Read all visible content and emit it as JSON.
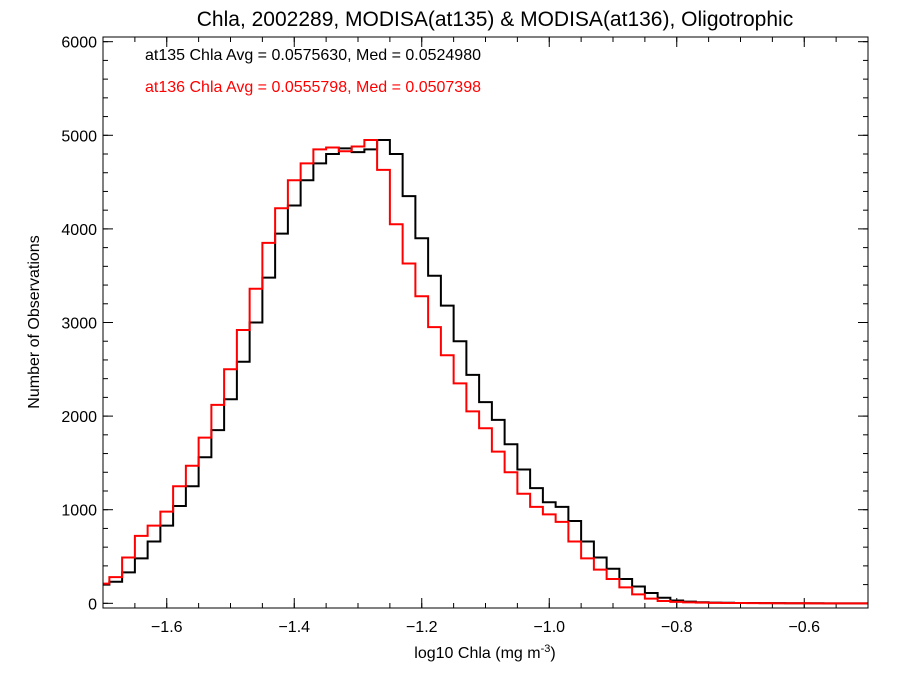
{
  "chart_data": {
    "type": "line",
    "title": "Chla, 2002289, MODISA(at135) & MODISA(at136), Oligotrophic",
    "xlabel": "log10 Chla (mg m",
    "xlabel_sup": "-3",
    "xlabel_end": ")",
    "ylabel": "Number of Observations",
    "xlim": [
      -1.7,
      -0.5
    ],
    "ylim": [
      -50,
      6050
    ],
    "xticks": [
      -1.6,
      -1.4,
      -1.2,
      -1.0,
      -0.8,
      -0.6
    ],
    "xtick_labels": [
      "−1.6",
      "−1.4",
      "−1.2",
      "−1.0",
      "−0.8",
      "−0.6"
    ],
    "yticks": [
      0,
      1000,
      2000,
      3000,
      4000,
      5000,
      6000
    ],
    "ytick_labels": [
      "0",
      "1000",
      "2000",
      "3000",
      "4000",
      "5000",
      "6000"
    ],
    "grid": false,
    "annotations": [
      {
        "text": "at135 Chla Avg = 0.0575630, Med = 0.0524980",
        "color": "#000000"
      },
      {
        "text": "at136 Chla Avg = 0.0555798, Med = 0.0507398",
        "color": "#ff0000"
      }
    ],
    "series": [
      {
        "color": "#000000",
        "x": [
          -1.7,
          -1.68,
          -1.66,
          -1.64,
          -1.62,
          -1.6,
          -1.58,
          -1.56,
          -1.54,
          -1.52,
          -1.5,
          -1.48,
          -1.46,
          -1.44,
          -1.42,
          -1.4,
          -1.38,
          -1.36,
          -1.34,
          -1.32,
          -1.3,
          -1.28,
          -1.26,
          -1.24,
          -1.22,
          -1.2,
          -1.18,
          -1.16,
          -1.14,
          -1.12,
          -1.1,
          -1.08,
          -1.06,
          -1.04,
          -1.02,
          -1.0,
          -0.98,
          -0.96,
          -0.94,
          -0.92,
          -0.9,
          -0.88,
          -0.86,
          -0.84,
          -0.82,
          -0.8,
          -0.78,
          -0.76,
          -0.74,
          -0.72,
          -0.7,
          -0.68,
          -0.66,
          -0.64,
          -0.62,
          -0.6,
          -0.58,
          -0.56,
          -0.54,
          -0.52,
          -0.5
        ],
        "values": [
          200,
          230,
          330,
          480,
          660,
          830,
          1040,
          1250,
          1560,
          1850,
          2180,
          2580,
          3000,
          3480,
          3950,
          4250,
          4520,
          4700,
          4800,
          4860,
          4820,
          4850,
          4950,
          4800,
          4350,
          3900,
          3500,
          3180,
          2800,
          2440,
          2150,
          1960,
          1700,
          1430,
          1230,
          1080,
          1030,
          880,
          660,
          490,
          370,
          260,
          180,
          110,
          60,
          30,
          18,
          12,
          8,
          6,
          4,
          3,
          2,
          2,
          1,
          1,
          1,
          0,
          0,
          0,
          0
        ]
      },
      {
        "color": "#ff0000",
        "x": [
          -1.7,
          -1.68,
          -1.66,
          -1.64,
          -1.62,
          -1.6,
          -1.58,
          -1.56,
          -1.54,
          -1.52,
          -1.5,
          -1.48,
          -1.46,
          -1.44,
          -1.42,
          -1.4,
          -1.38,
          -1.36,
          -1.34,
          -1.32,
          -1.3,
          -1.28,
          -1.26,
          -1.24,
          -1.22,
          -1.2,
          -1.18,
          -1.16,
          -1.14,
          -1.12,
          -1.1,
          -1.08,
          -1.06,
          -1.04,
          -1.02,
          -1.0,
          -0.98,
          -0.96,
          -0.94,
          -0.92,
          -0.9,
          -0.88,
          -0.86,
          -0.84,
          -0.82,
          -0.8,
          -0.78,
          -0.76,
          -0.74,
          -0.72,
          -0.7,
          -0.68,
          -0.66,
          -0.64,
          -0.62,
          -0.6,
          -0.58,
          -0.56,
          -0.54,
          -0.52,
          -0.5
        ],
        "values": [
          210,
          280,
          490,
          720,
          830,
          980,
          1250,
          1470,
          1770,
          2120,
          2500,
          2920,
          3360,
          3850,
          4220,
          4520,
          4700,
          4850,
          4870,
          4830,
          4880,
          4950,
          4630,
          4050,
          3630,
          3280,
          2950,
          2650,
          2350,
          2050,
          1870,
          1620,
          1400,
          1170,
          1030,
          950,
          870,
          660,
          480,
          360,
          260,
          170,
          95,
          50,
          25,
          15,
          10,
          7,
          5,
          4,
          3,
          2,
          2,
          1,
          1,
          1,
          0,
          0,
          0,
          0,
          0
        ]
      }
    ]
  }
}
